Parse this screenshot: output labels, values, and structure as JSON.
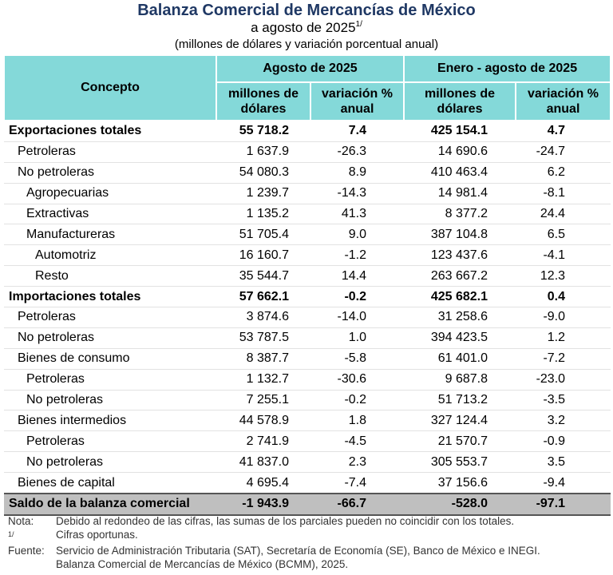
{
  "header": {
    "title": "Balanza Comercial de Mercancías de México",
    "subtitle": "a agosto de 2025",
    "subtitle_note": "1/",
    "units": "(millones de dólares y variación porcentual anual)"
  },
  "table": {
    "concept_header": "Concepto",
    "groups": [
      "Agosto de 2025",
      "Enero - agosto de 2025"
    ],
    "subheaders": [
      "millones de dólares",
      "variación % anual",
      "millones de dólares",
      "variación % anual"
    ],
    "rows": [
      [
        "Exportaciones totales",
        "55 718.2",
        "7.4",
        "425 154.1",
        "4.7"
      ],
      [
        "Petroleras",
        "1 637.9",
        "-26.3",
        "14 690.6",
        "-24.7"
      ],
      [
        "No petroleras",
        "54 080.3",
        "8.9",
        "410 463.4",
        "6.2"
      ],
      [
        "Agropecuarias",
        "1 239.7",
        "-14.3",
        "14 981.4",
        "-8.1"
      ],
      [
        "Extractivas",
        "1 135.2",
        "41.3",
        "8 377.2",
        "24.4"
      ],
      [
        "Manufactureras",
        "51 705.4",
        "9.0",
        "387 104.8",
        "6.5"
      ],
      [
        "Automotriz",
        "16 160.7",
        "-1.2",
        "123 437.6",
        "-4.1"
      ],
      [
        "Resto",
        "35 544.7",
        "14.4",
        "263 667.2",
        "12.3"
      ],
      [
        "Importaciones totales",
        "57 662.1",
        "-0.2",
        "425 682.1",
        "0.4"
      ],
      [
        "Petroleras",
        "3 874.6",
        "-14.0",
        "31 258.6",
        "-9.0"
      ],
      [
        "No petroleras",
        "53 787.5",
        "1.0",
        "394 423.5",
        "1.2"
      ],
      [
        "Bienes de consumo",
        "8 387.7",
        "-5.8",
        "61 401.0",
        "-7.2"
      ],
      [
        "Petroleras",
        "1 132.7",
        "-30.6",
        "9 687.8",
        "-23.0"
      ],
      [
        "No petroleras",
        "7 255.1",
        "-0.2",
        "51 713.2",
        "-3.5"
      ],
      [
        "Bienes intermedios",
        "44 578.9",
        "1.8",
        "327 124.4",
        "3.2"
      ],
      [
        "Petroleras",
        "2 741.9",
        "-4.5",
        "21 570.7",
        "-0.9"
      ],
      [
        "No petroleras",
        "41 837.0",
        "2.3",
        "305 553.7",
        "3.5"
      ],
      [
        "Bienes de capital",
        "4 695.4",
        "-7.4",
        "37 156.6",
        "-9.4"
      ],
      [
        "Saldo de la balanza comercial",
        "-1 943.9",
        "-66.7",
        "-528.0",
        "-97.1"
      ]
    ]
  },
  "notes": [
    {
      "label": "Nota:",
      "text": "Debido al redondeo de las cifras, las sumas de los parciales pueden no coincidir con los totales."
    },
    {
      "label": "1/",
      "text": "Cifras oportunas."
    },
    {
      "label": "Fuente:",
      "text": "Servicio de Administración Tributaria (SAT), Secretaría de Economía (SE), Banco de México e INEGI."
    },
    {
      "label": null,
      "text": "Balanza Comercial de Mercancías de México (BCMM), 2025."
    }
  ]
}
